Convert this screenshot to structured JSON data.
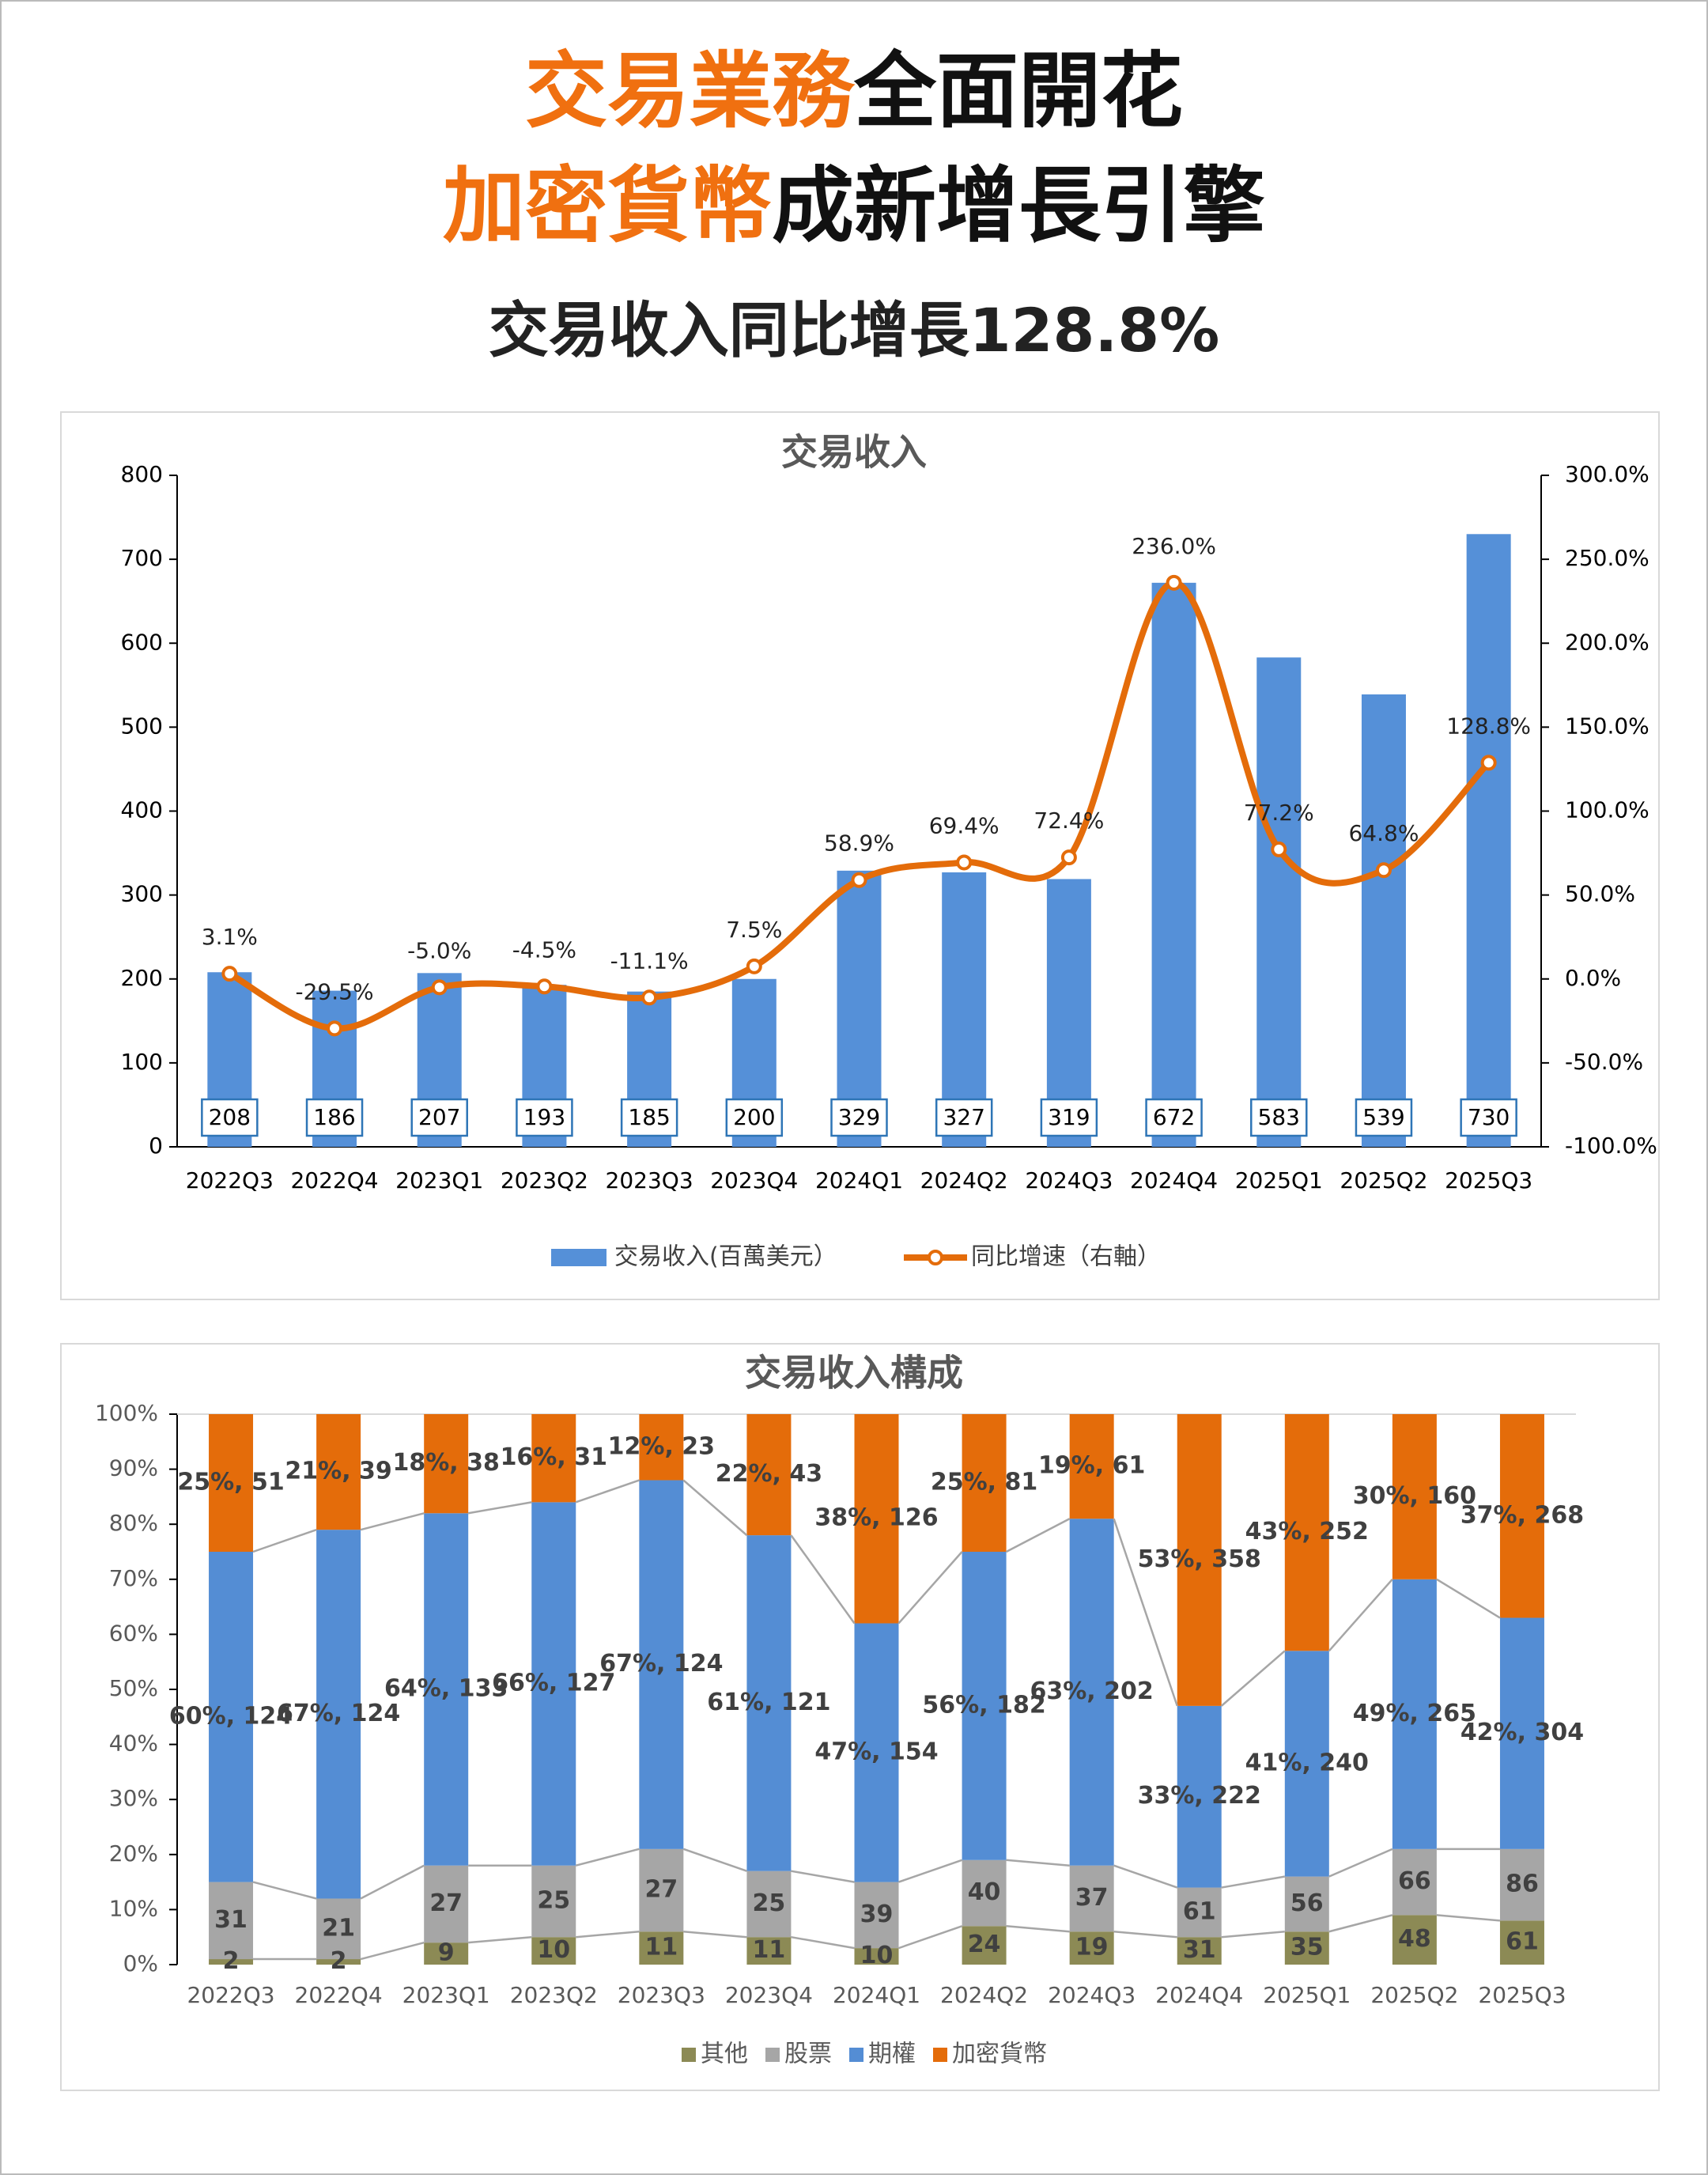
{
  "header": {
    "line1": [
      "交易業務",
      "全面開花"
    ],
    "line2": [
      "加密貨幣",
      "成新增長引擎"
    ],
    "subtitle": "交易收入同比增長128.8%"
  },
  "chart_data": [
    {
      "type": "bar-line",
      "title": "交易收入",
      "categories": [
        "2022Q3",
        "2022Q4",
        "2023Q1",
        "2023Q2",
        "2023Q3",
        "2023Q4",
        "2024Q1",
        "2024Q2",
        "2024Q3",
        "2024Q4",
        "2025Q1",
        "2025Q2",
        "2025Q3"
      ],
      "series": [
        {
          "name": "交易收入(百萬美元）",
          "type": "bar",
          "color": "#5590d8",
          "values": [
            208,
            186,
            207,
            193,
            185,
            200,
            329,
            327,
            319,
            672,
            583,
            539,
            730
          ]
        },
        {
          "name": "同比增速（右軸）",
          "type": "line",
          "axis": "y2",
          "color": "#e46c0a",
          "values": [
            3.1,
            -29.5,
            -5.0,
            -4.5,
            -11.1,
            7.5,
            58.9,
            69.4,
            72.4,
            236.0,
            77.2,
            64.8,
            128.8
          ],
          "value_labels": [
            "3.1%",
            "-29.5%",
            "-5.0%",
            "-4.5%",
            "-11.1%",
            "7.5%",
            "58.9%",
            "69.4%",
            "72.4%",
            "236.0%",
            "77.2%",
            "64.8%",
            "128.8%"
          ]
        }
      ],
      "ylim": [
        0,
        800
      ],
      "yticks": [
        0,
        100,
        200,
        300,
        400,
        500,
        600,
        700,
        800
      ],
      "y2lim": [
        -100,
        300
      ],
      "y2ticks": [
        {
          "value": -100,
          "label": "-100.0%"
        },
        {
          "value": -50,
          "label": "-50.0%"
        },
        {
          "value": 0,
          "label": "0.0%"
        },
        {
          "value": 50,
          "label": "50.0%"
        },
        {
          "value": 100,
          "label": "100.0%"
        },
        {
          "value": 150,
          "label": "150.0%"
        },
        {
          "value": 200,
          "label": "200.0%"
        },
        {
          "value": 250,
          "label": "250.0%"
        },
        {
          "value": 300,
          "label": "300.0%"
        }
      ],
      "legend": "bottom"
    },
    {
      "type": "stacked-bar-100",
      "title": "交易收入構成",
      "categories": [
        "2022Q3",
        "2022Q4",
        "2023Q1",
        "2023Q2",
        "2023Q3",
        "2023Q4",
        "2024Q1",
        "2024Q2",
        "2024Q3",
        "2024Q4",
        "2025Q1",
        "2025Q2",
        "2025Q3"
      ],
      "series": [
        {
          "name": "其他",
          "color": "#8c8a55",
          "values": [
            1,
            1,
            4,
            5,
            6,
            5,
            3,
            7,
            6,
            5,
            6,
            9,
            8
          ],
          "amounts": [
            2,
            2,
            9,
            10,
            11,
            11,
            10,
            24,
            19,
            31,
            35,
            48,
            61
          ]
        },
        {
          "name": "股票",
          "color": "#a6a6a6",
          "values": [
            14,
            11,
            14,
            13,
            15,
            12,
            12,
            12,
            12,
            9,
            10,
            12,
            13
          ],
          "amounts": [
            31,
            21,
            27,
            25,
            27,
            25,
            39,
            40,
            37,
            61,
            56,
            66,
            86
          ]
        },
        {
          "name": "期權",
          "color": "#548dd4",
          "values": [
            60,
            67,
            64,
            66,
            67,
            61,
            47,
            56,
            63,
            33,
            41,
            49,
            42
          ],
          "value_labels": [
            "60%, 124",
            "67%, 124",
            "64%, 133",
            "66%, 127",
            "67%, 124",
            "61%, 121",
            "47%, 154",
            "56%, 182",
            "63%, 202",
            "33%, 222",
            "41%, 240",
            "49%, 265",
            "42%, 304"
          ]
        },
        {
          "name": "加密貨幣",
          "color": "#e46c0a",
          "values": [
            25,
            21,
            18,
            16,
            12,
            22,
            38,
            25,
            19,
            53,
            43,
            30,
            37
          ],
          "value_labels": [
            "25%, 51",
            "21%, 39",
            "18%, 38",
            "16%, 31",
            "12%, 23",
            "22%, 43",
            "38%, 126",
            "25%, 81",
            "19%, 61",
            "53%, 358",
            "43%, 252",
            "30%, 160",
            "37%, 268"
          ]
        }
      ],
      "ylim": [
        0,
        100
      ],
      "yticks": [
        {
          "value": 0,
          "label": "0%"
        },
        {
          "value": 10,
          "label": "10%"
        },
        {
          "value": 20,
          "label": "20%"
        },
        {
          "value": 30,
          "label": "30%"
        },
        {
          "value": 40,
          "label": "40%"
        },
        {
          "value": 50,
          "label": "50%"
        },
        {
          "value": 60,
          "label": "60%"
        },
        {
          "value": 70,
          "label": "70%"
        },
        {
          "value": 80,
          "label": "80%"
        },
        {
          "value": 90,
          "label": "90%"
        },
        {
          "value": 100,
          "label": "100%"
        }
      ],
      "legend": "bottom"
    }
  ]
}
